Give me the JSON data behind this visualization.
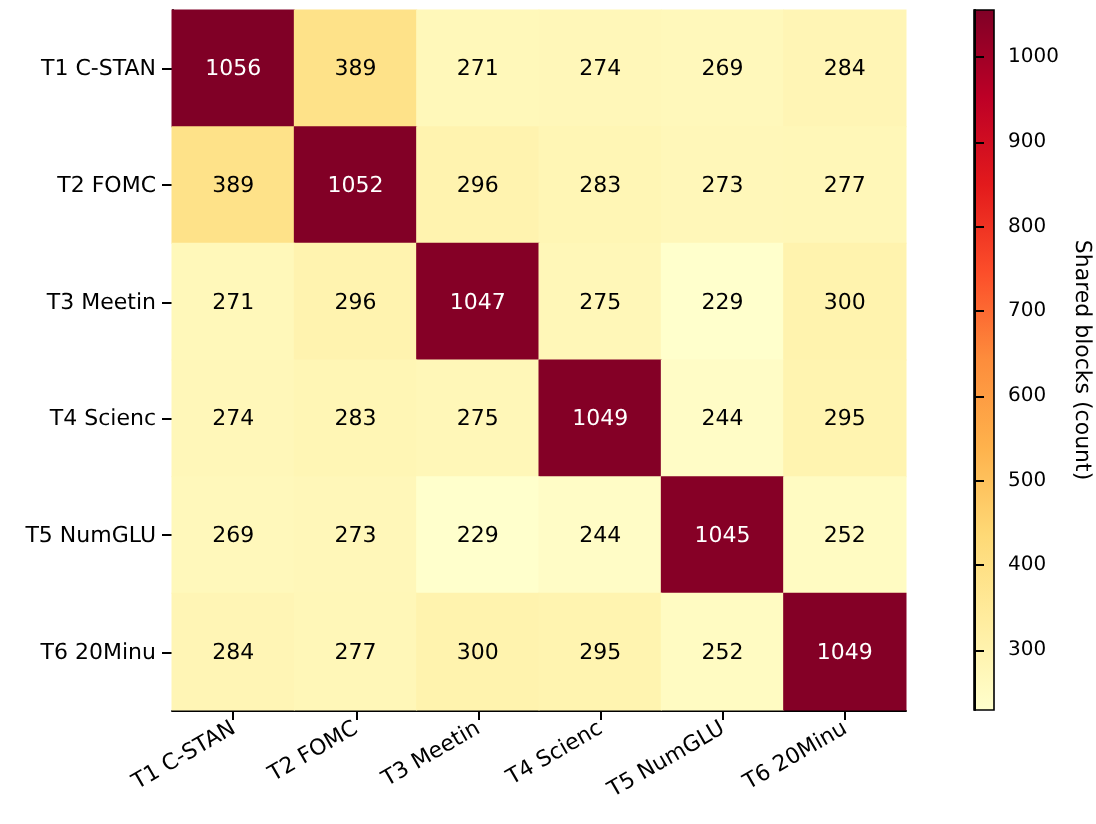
{
  "chart_data": {
    "type": "heatmap",
    "categories": [
      "T1 C-STAN",
      "T2 FOMC",
      "T3 Meetin",
      "T4 Scienc",
      "T5 NumGLU",
      "T6 20Minu"
    ],
    "y_categories": [
      "T1 C-STAN",
      "T2 FOMC",
      "T3 Meetin",
      "T4 Scienc",
      "T5 NumGLU",
      "T6 20Minu"
    ],
    "cells": [
      [
        1056,
        389,
        271,
        274,
        269,
        284
      ],
      [
        389,
        1052,
        296,
        283,
        273,
        277
      ],
      [
        271,
        296,
        1047,
        275,
        229,
        300
      ],
      [
        274,
        283,
        275,
        1049,
        244,
        295
      ],
      [
        269,
        273,
        229,
        244,
        1045,
        252
      ],
      [
        284,
        277,
        300,
        295,
        252,
        1049
      ]
    ],
    "data_labels": true,
    "clabel": "Shared blocks (count)",
    "clim": [
      229,
      1056
    ],
    "cticks": [
      300,
      400,
      500,
      600,
      700,
      800,
      900,
      1000
    ]
  }
}
